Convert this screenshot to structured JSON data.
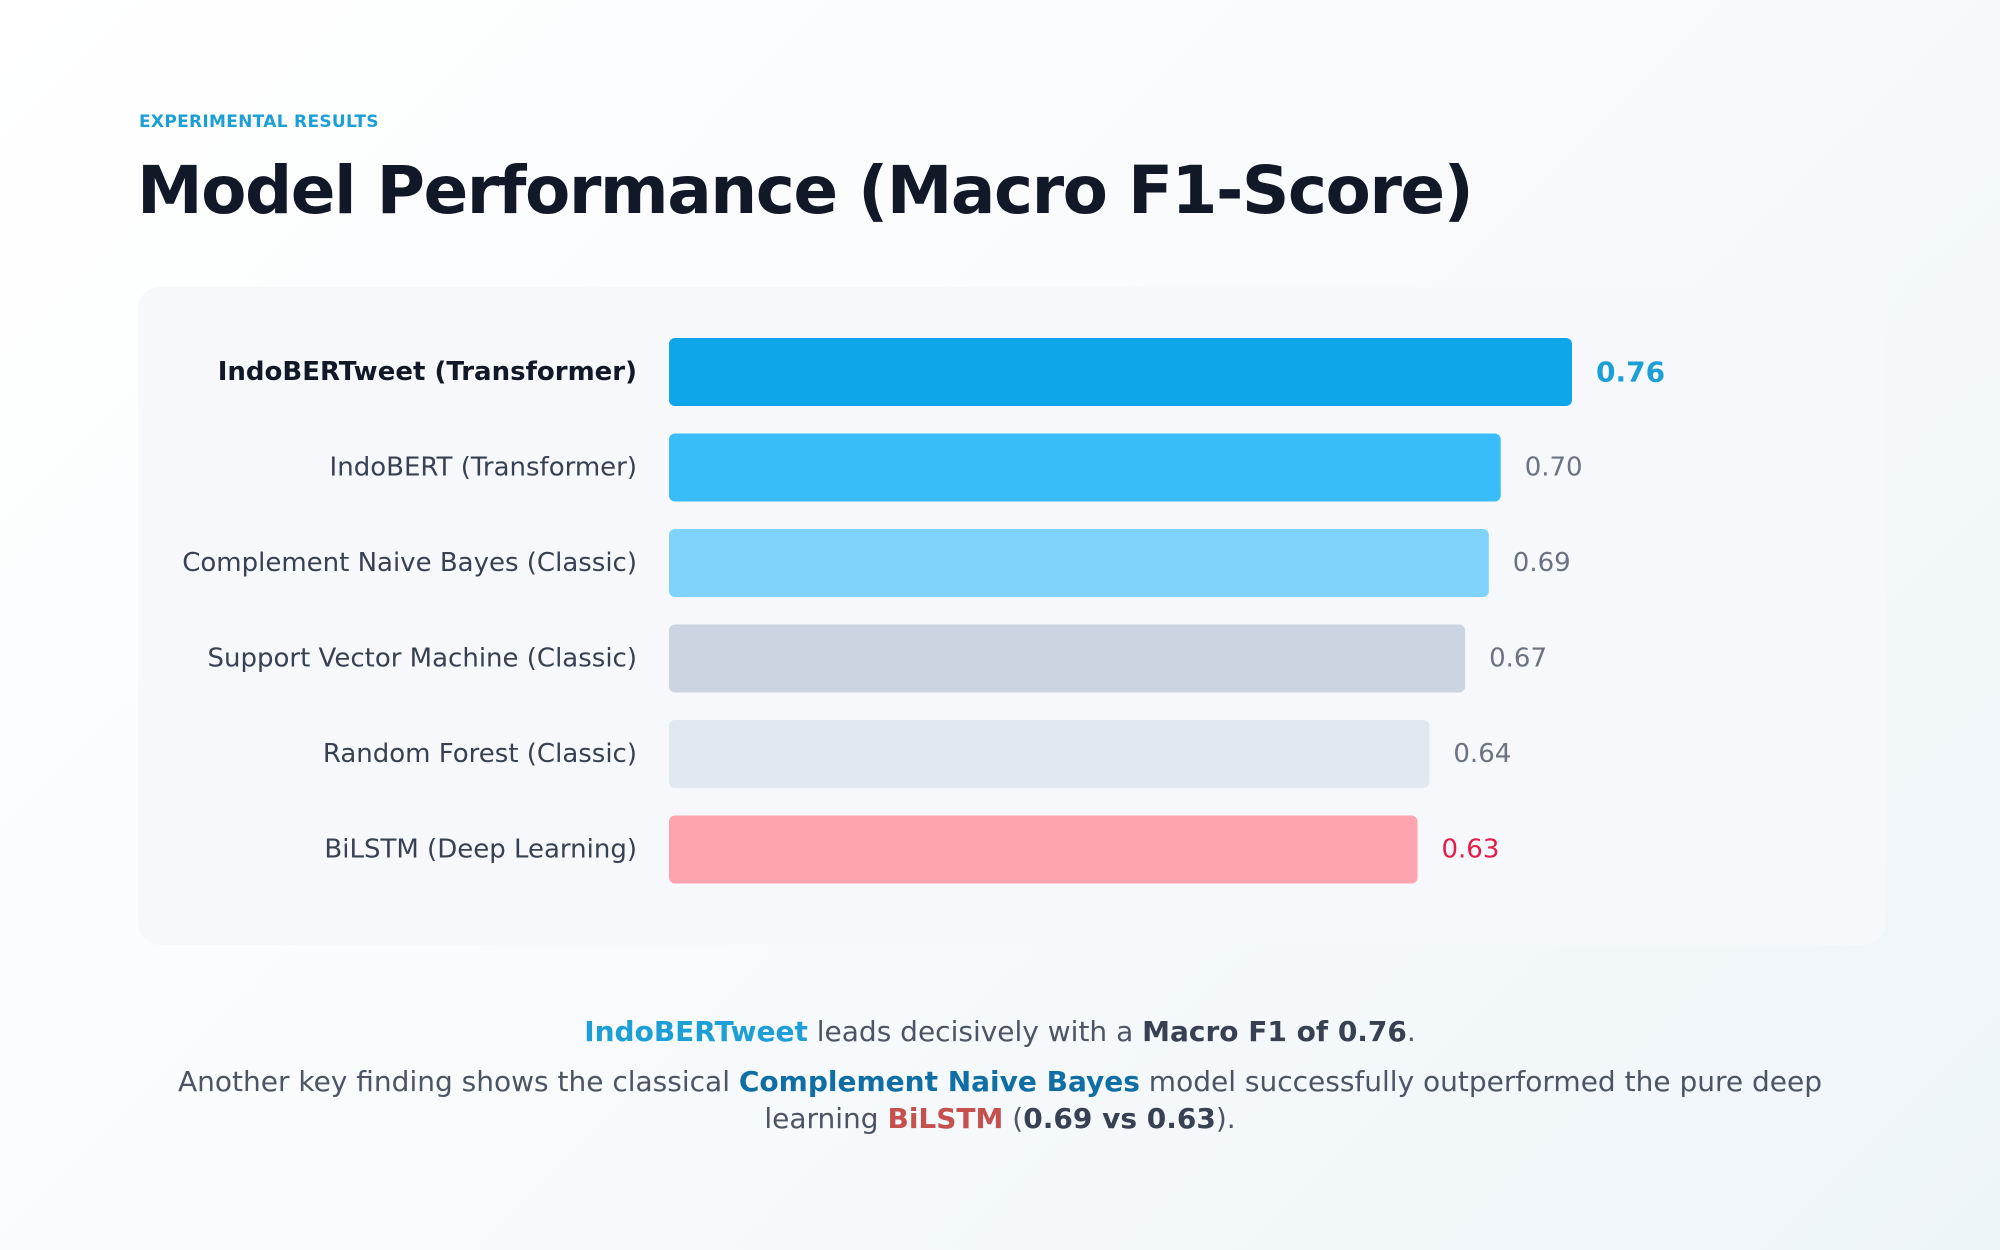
{
  "header": {
    "eyebrow": "EXPERIMENTAL RESULTS",
    "title": "Model Performance (Macro F1-Score)"
  },
  "chart_data": {
    "type": "bar",
    "orientation": "horizontal",
    "categories": [
      "IndoBERTweet (Transformer)",
      "IndoBERT (Transformer)",
      "Complement Naive Bayes (Classic)",
      "Support Vector Machine (Classic)",
      "Random Forest (Classic)",
      "BiLSTM (Deep Learning)"
    ],
    "values": [
      0.76,
      0.7,
      0.69,
      0.67,
      0.64,
      0.63
    ],
    "value_labels": [
      "0.76",
      "0.70",
      "0.69",
      "0.67",
      "0.64",
      "0.63"
    ],
    "bar_colors": [
      "#0ea5e9",
      "#38bdf8",
      "#7dd3fc",
      "#cbd5e1",
      "#e2e8f0",
      "#fda4af"
    ],
    "label_colors": [
      "#1c9fd6",
      "#6b7280",
      "#6b7280",
      "#6b7280",
      "#6b7280",
      "#e11d48"
    ],
    "highlight_index": 0,
    "xlim": [
      0,
      0.76
    ],
    "grid": false,
    "legend": "none"
  },
  "summary": {
    "line1": {
      "model": "IndoBERTweet",
      "text": " leads decisively with a ",
      "metric": "Macro F1 of 0.76",
      "end": "."
    },
    "line2": {
      "text_a": "Another key finding shows the classical ",
      "model_a": "Complement Naive Bayes",
      "text_b": " model successfully outperformed the pure deep"
    },
    "line3": {
      "text_a": "learning ",
      "model_b": "BiLSTM",
      "paren_open": " (",
      "comparison": "0.69 vs 0.63",
      "paren_close": ")."
    }
  }
}
